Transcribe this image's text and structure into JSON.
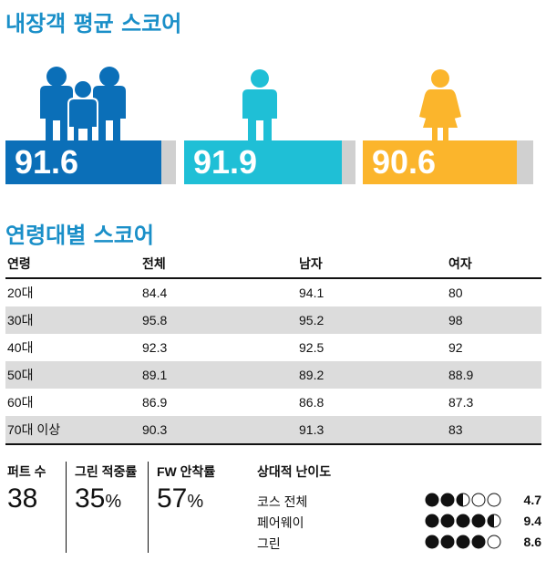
{
  "title_average": "내장객 평균 스코어",
  "title_age": "연령대별 스코어",
  "chart_data": [
    {
      "type": "bar",
      "categories": [
        "all",
        "male",
        "female"
      ],
      "values": [
        91.6,
        91.9,
        90.6
      ],
      "colors": {
        "all": "#0b6fb8",
        "male": "#1fbfd6",
        "female": "#fbb52c",
        "track": "#d0d0d0"
      }
    },
    {
      "type": "table",
      "columns": [
        "연령",
        "전체",
        "남자",
        "여자"
      ],
      "rows": [
        [
          "20대",
          "84.4",
          "94.1",
          "80"
        ],
        [
          "30대",
          "95.8",
          "95.2",
          "98"
        ],
        [
          "40대",
          "92.3",
          "92.5",
          "92"
        ],
        [
          "50대",
          "89.1",
          "89.2",
          "88.9"
        ],
        [
          "60대",
          "86.9",
          "86.8",
          "87.3"
        ],
        [
          "70대 이상",
          "90.3",
          "91.3",
          "83"
        ]
      ]
    }
  ],
  "stats": [
    {
      "label": "퍼트 수",
      "value": "38",
      "unit": ""
    },
    {
      "label": "그린 적중률",
      "value": "35",
      "unit": "%"
    },
    {
      "label": "FW 안착률",
      "value": "57",
      "unit": "%"
    }
  ],
  "difficulty": {
    "title": "상대적 난이도",
    "rows": [
      {
        "label": "코스 전체",
        "score": "4.7",
        "filled": 2,
        "half": true
      },
      {
        "label": "페어웨이",
        "score": "9.4",
        "filled": 4,
        "half": true
      },
      {
        "label": "그린",
        "score": "8.6",
        "filled": 4,
        "half": false
      }
    ]
  }
}
